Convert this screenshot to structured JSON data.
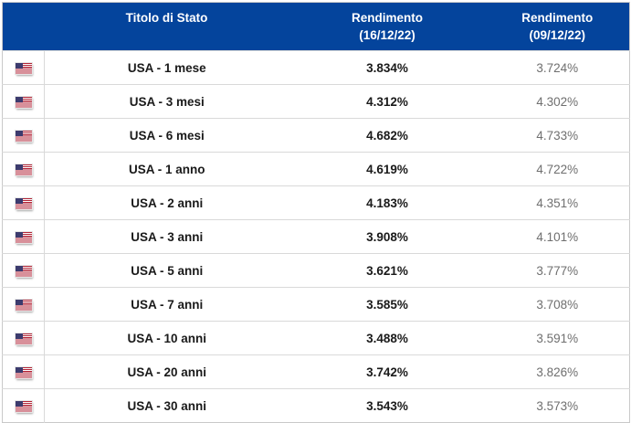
{
  "colors": {
    "header_bg": "#04449c",
    "header_text": "#ffffff",
    "name_text": "#1a1a1a",
    "value_current_text": "#1a1a1a",
    "value_previous_text": "#6f6f6f",
    "row_border": "#d9d9d9",
    "outer_border": "#c9c9c9",
    "flag_red": "#b22234",
    "flag_blue": "#3c3b6e"
  },
  "table": {
    "columns": [
      {
        "id": "flag",
        "label": ""
      },
      {
        "id": "name",
        "label": "Titolo di Stato"
      },
      {
        "id": "yield_current",
        "label": "Rendimento",
        "sublabel": "(16/12/22)"
      },
      {
        "id": "yield_previous",
        "label": "Rendimento",
        "sublabel": "(09/12/22)"
      }
    ],
    "rows": [
      {
        "flag": "usa-flag",
        "name": "USA - 1 mese",
        "yield_current": "3.834%",
        "yield_previous": "3.724%"
      },
      {
        "flag": "usa-flag",
        "name": "USA - 3 mesi",
        "yield_current": "4.312%",
        "yield_previous": "4.302%"
      },
      {
        "flag": "usa-flag",
        "name": "USA - 6 mesi",
        "yield_current": "4.682%",
        "yield_previous": "4.733%"
      },
      {
        "flag": "usa-flag",
        "name": "USA - 1 anno",
        "yield_current": "4.619%",
        "yield_previous": "4.722%"
      },
      {
        "flag": "usa-flag",
        "name": "USA - 2 anni",
        "yield_current": "4.183%",
        "yield_previous": "4.351%"
      },
      {
        "flag": "usa-flag",
        "name": "USA - 3 anni",
        "yield_current": "3.908%",
        "yield_previous": "4.101%"
      },
      {
        "flag": "usa-flag",
        "name": "USA - 5 anni",
        "yield_current": "3.621%",
        "yield_previous": "3.777%"
      },
      {
        "flag": "usa-flag",
        "name": "USA - 7 anni",
        "yield_current": "3.585%",
        "yield_previous": "3.708%"
      },
      {
        "flag": "usa-flag",
        "name": "USA - 10 anni",
        "yield_current": "3.488%",
        "yield_previous": "3.591%"
      },
      {
        "flag": "usa-flag",
        "name": "USA - 20 anni",
        "yield_current": "3.742%",
        "yield_previous": "3.826%"
      },
      {
        "flag": "usa-flag",
        "name": "USA - 30 anni",
        "yield_current": "3.543%",
        "yield_previous": "3.573%"
      }
    ]
  }
}
